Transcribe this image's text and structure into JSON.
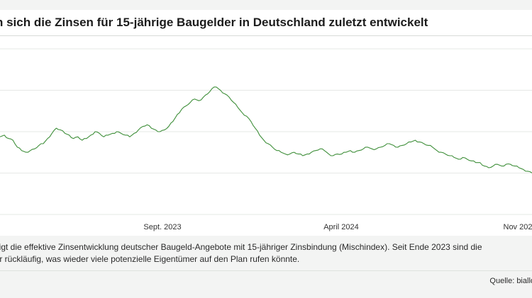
{
  "header": {
    "title": "n sich die Zinsen für 15-jährige Baugelder in Deutschland zuletzt entwickelt"
  },
  "chart_data": {
    "type": "line",
    "title": "n sich die Zinsen für 15-jährige Baugelder in Deutschland zuletzt entwickelt",
    "xlabel": "",
    "ylabel": "",
    "x_ticks": [
      "Sept. 2023",
      "April 2024",
      "Nov 202"
    ],
    "grid": true,
    "line_color": "#3f8f3a",
    "series": [
      {
        "values": [
          0.7,
          0.71,
          0.69,
          0.68,
          0.64,
          0.62,
          0.61,
          0.62,
          0.63,
          0.65,
          0.66,
          0.69,
          0.72,
          0.75,
          0.74,
          0.72,
          0.71,
          0.69,
          0.7,
          0.68,
          0.69,
          0.71,
          0.73,
          0.72,
          0.7,
          0.71,
          0.72,
          0.73,
          0.72,
          0.71,
          0.7,
          0.72,
          0.74,
          0.76,
          0.77,
          0.75,
          0.74,
          0.73,
          0.74,
          0.76,
          0.79,
          0.83,
          0.86,
          0.88,
          0.9,
          0.92,
          0.91,
          0.93,
          0.95,
          0.98,
          0.99,
          0.97,
          0.95,
          0.93,
          0.9,
          0.87,
          0.84,
          0.82,
          0.79,
          0.75,
          0.71,
          0.68,
          0.66,
          0.64,
          0.62,
          0.61,
          0.6,
          0.6,
          0.61,
          0.6,
          0.59,
          0.6,
          0.61,
          0.62,
          0.63,
          0.62,
          0.6,
          0.59,
          0.6,
          0.6,
          0.61,
          0.62,
          0.61,
          0.62,
          0.63,
          0.64,
          0.63,
          0.63,
          0.64,
          0.65,
          0.66,
          0.65,
          0.64,
          0.65,
          0.66,
          0.67,
          0.68,
          0.67,
          0.66,
          0.65,
          0.64,
          0.62,
          0.61,
          0.6,
          0.59,
          0.58,
          0.57,
          0.58,
          0.57,
          0.56,
          0.55,
          0.55,
          0.53,
          0.52,
          0.53,
          0.54,
          0.53,
          0.54,
          0.54,
          0.53,
          0.52,
          0.51,
          0.5,
          0.49
        ]
      }
    ],
    "y_grid_fractions": [
      0.0,
      0.25,
      0.5,
      0.75,
      1.0
    ]
  },
  "description": {
    "line1": "zeigt die effektive Zinsentwicklung deutscher Baugeld-Angebote mit 15-jähriger Zinsbindung (Mischindex). Seit Ende 2023 sind die",
    "line2": "der rückläufig, was wieder viele potenzielle Eigentümer auf den Plan rufen könnte."
  },
  "source": {
    "text": "Quelle: biallo"
  }
}
